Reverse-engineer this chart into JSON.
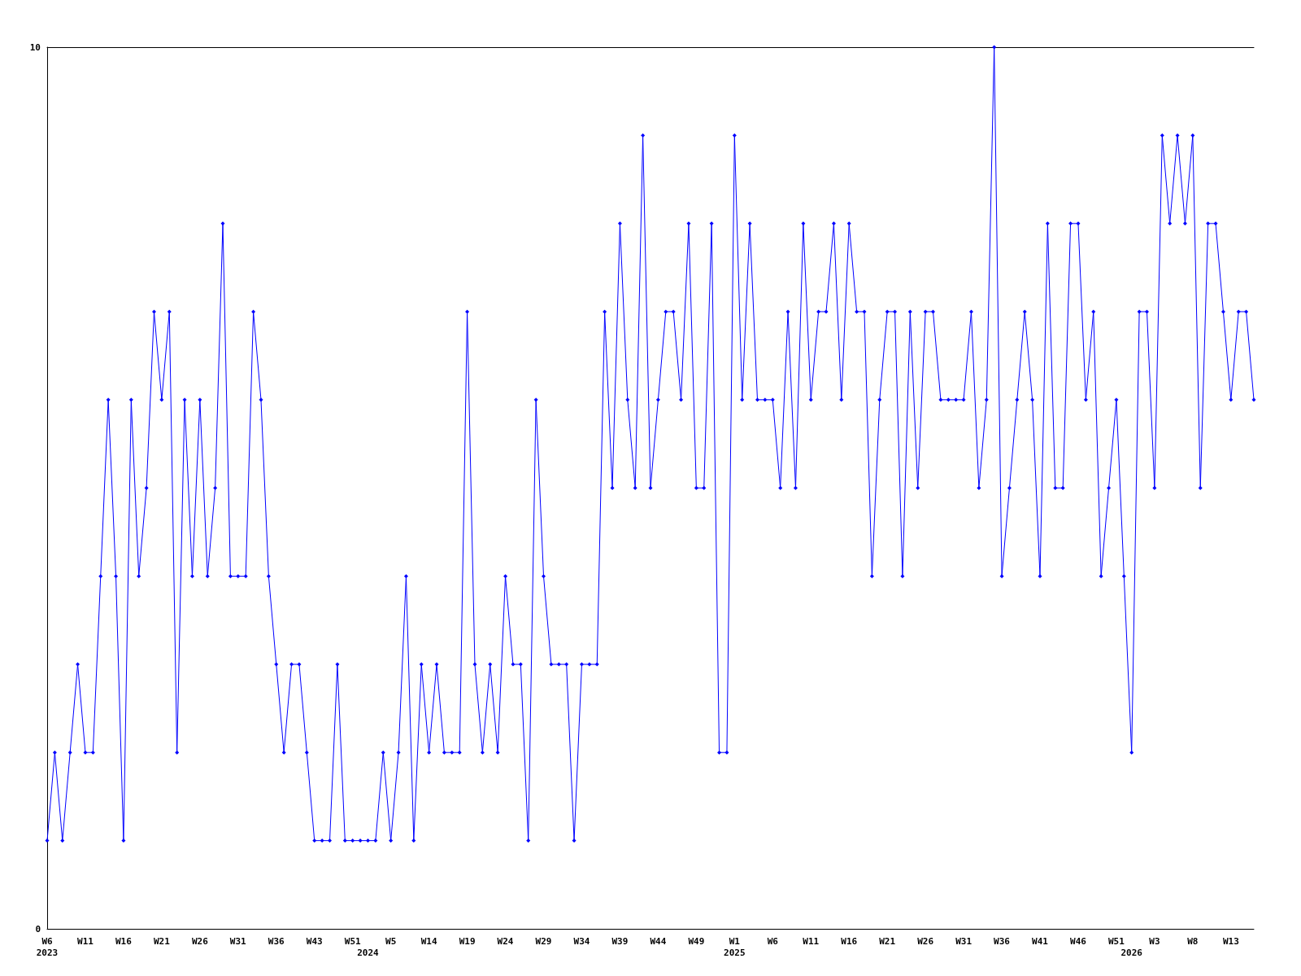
{
  "chart_data": {
    "type": "line",
    "categories": [
      "W6\n2023",
      null,
      null,
      null,
      null,
      "W11",
      null,
      null,
      null,
      null,
      "W16",
      null,
      null,
      null,
      null,
      "W21",
      null,
      null,
      null,
      null,
      "W26",
      null,
      null,
      null,
      null,
      "W31",
      null,
      null,
      null,
      null,
      "W36",
      null,
      null,
      null,
      null,
      "W43",
      null,
      null,
      null,
      null,
      "W51",
      null,
      "\n2024",
      null,
      null,
      "W5",
      null,
      null,
      null,
      null,
      "W14",
      null,
      null,
      null,
      null,
      "W19",
      null,
      null,
      null,
      null,
      "W24",
      null,
      null,
      null,
      null,
      "W29",
      null,
      null,
      null,
      null,
      "W34",
      null,
      null,
      null,
      null,
      "W39",
      null,
      null,
      null,
      null,
      "W44",
      null,
      null,
      null,
      null,
      "W49",
      null,
      null,
      null,
      null,
      "W1\n2025",
      null,
      null,
      null,
      null,
      "W6",
      null,
      null,
      null,
      null,
      "W11",
      null,
      null,
      null,
      null,
      "W16",
      null,
      null,
      null,
      null,
      "W21",
      null,
      null,
      null,
      null,
      "W26",
      null,
      null,
      null,
      null,
      "W31",
      null,
      null,
      null,
      null,
      "W36",
      null,
      null,
      null,
      null,
      "W41",
      null,
      null,
      null,
      null,
      "W46",
      null,
      null,
      null,
      null,
      "W51",
      null,
      "\n2026",
      null,
      null,
      "W3",
      null,
      null,
      null,
      null,
      "W8",
      null,
      null,
      null,
      null,
      "W13",
      null,
      null,
      null
    ],
    "series": [
      {
        "color": "#0000ff",
        "values": [
          1,
          2,
          1,
          2,
          3,
          2,
          2,
          4,
          6,
          4,
          1,
          6,
          4,
          5,
          7,
          6,
          7,
          2,
          6,
          4,
          6,
          4,
          5,
          8,
          4,
          4,
          4,
          7,
          6,
          4,
          3,
          2,
          3,
          3,
          2,
          1,
          1,
          1,
          3,
          1,
          1,
          1,
          1,
          1,
          2,
          1,
          2,
          4,
          1,
          3,
          2,
          3,
          2,
          2,
          2,
          7,
          3,
          2,
          3,
          2,
          4,
          3,
          3,
          1,
          6,
          4,
          3,
          3,
          3,
          1,
          3,
          3,
          3,
          7,
          5,
          8,
          6,
          5,
          9,
          5,
          6,
          7,
          7,
          6,
          8,
          5,
          5,
          8,
          2,
          2,
          9,
          6,
          8,
          6,
          6,
          6,
          5,
          7,
          5,
          8,
          6,
          7,
          7,
          8,
          6,
          8,
          7,
          7,
          4,
          6,
          7,
          7,
          4,
          7,
          5,
          7,
          7,
          6,
          6,
          6,
          6,
          7,
          5,
          6,
          10,
          4,
          5,
          6,
          7,
          6,
          4,
          8,
          5,
          5,
          8,
          8,
          6,
          7,
          4,
          5,
          6,
          4,
          2,
          7,
          7,
          5,
          9,
          8,
          9,
          8,
          9,
          5,
          8,
          8,
          7,
          6,
          7,
          7,
          6
        ]
      }
    ],
    "ylim": [
      0,
      10
    ],
    "yticks": [
      0,
      10
    ],
    "marker": "diamond",
    "line_style": "solid"
  }
}
